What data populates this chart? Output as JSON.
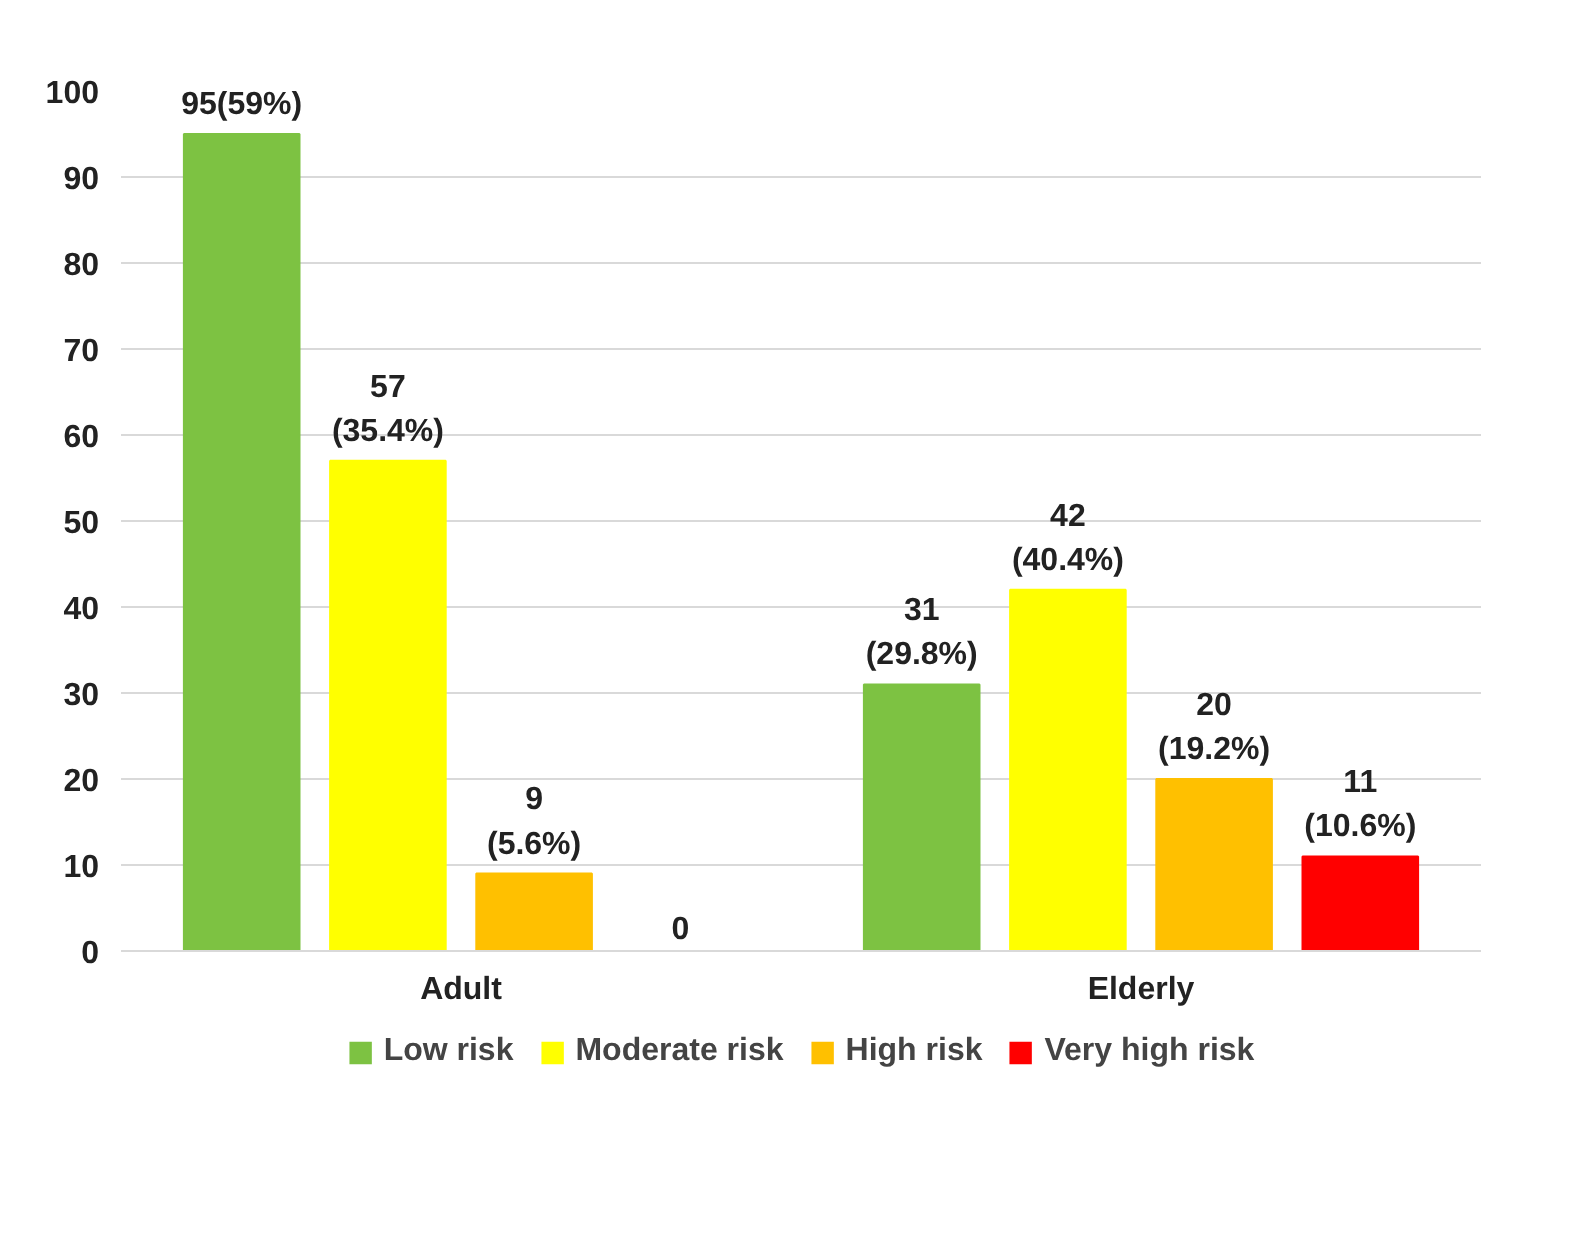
{
  "chart_data": {
    "type": "bar",
    "categories": [
      "Adult",
      "Elderly"
    ],
    "series": [
      {
        "name": "Low risk",
        "color": "#7dc242",
        "values": [
          95,
          31
        ],
        "value_labels": [
          "95(59%)",
          "31\n(29.8%)"
        ]
      },
      {
        "name": "Moderate risk",
        "color": "#ffff00",
        "values": [
          57,
          42
        ],
        "value_labels": [
          "57\n(35.4%)",
          "42\n(40.4%)"
        ]
      },
      {
        "name": "High risk",
        "color": "#ffc000",
        "values": [
          9,
          20
        ],
        "value_labels": [
          "9\n(5.6%)",
          "20\n(19.2%)"
        ]
      },
      {
        "name": "Very high risk",
        "color": "#ff0000",
        "values": [
          0,
          11
        ],
        "value_labels": [
          "0",
          "11\n(10.6%)"
        ]
      }
    ],
    "ylim": [
      0,
      100
    ],
    "yticks": [
      0,
      10,
      20,
      30,
      40,
      50,
      60,
      70,
      80,
      90,
      100
    ],
    "grid": "y",
    "legend": "bottom"
  }
}
